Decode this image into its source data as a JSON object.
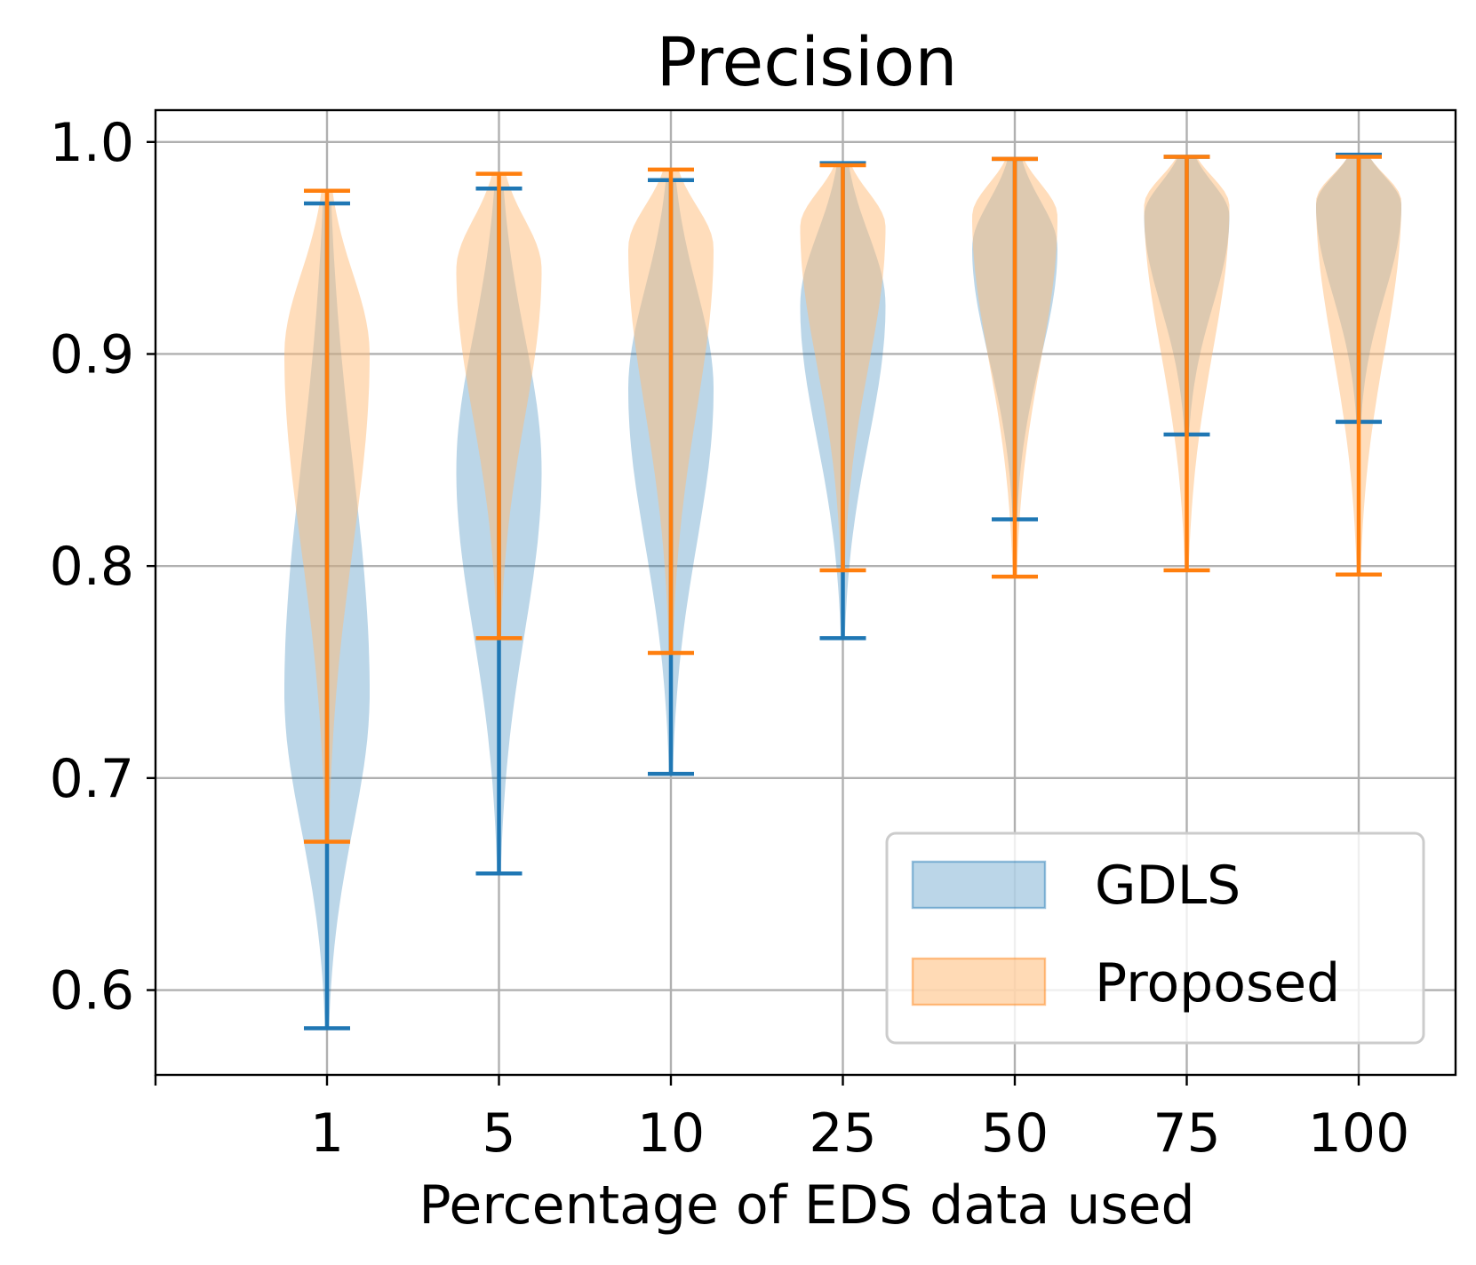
{
  "chart_data": {
    "type": "violin",
    "title": "Precision",
    "xlabel": "Percentage of EDS data used",
    "ylabel": "",
    "categories": [
      "1",
      "5",
      "10",
      "25",
      "50",
      "75",
      "100"
    ],
    "ylim": [
      0.56,
      1.015
    ],
    "yticks": [
      0.6,
      0.7,
      0.8,
      0.9,
      1.0
    ],
    "ytick_labels": [
      "0.6",
      "0.7",
      "0.8",
      "0.9",
      "1.0"
    ],
    "grid": true,
    "legend_position": "lower-right",
    "series": [
      {
        "name": "GDLS",
        "color": "#1f77b4",
        "fill": "#1f77b4",
        "min": [
          0.582,
          0.655,
          0.702,
          0.766,
          0.822,
          0.862,
          0.868
        ],
        "max": [
          0.971,
          0.978,
          0.982,
          0.99,
          0.992,
          0.993,
          0.994
        ],
        "mode": [
          0.74,
          0.845,
          0.883,
          0.923,
          0.95,
          0.965,
          0.97
        ]
      },
      {
        "name": "Proposed",
        "color": "#ff7f0e",
        "fill": "#ffbb78",
        "min": [
          0.67,
          0.766,
          0.759,
          0.798,
          0.795,
          0.798,
          0.796
        ],
        "max": [
          0.977,
          0.985,
          0.987,
          0.989,
          0.992,
          0.993,
          0.993
        ],
        "mode": [
          0.9,
          0.94,
          0.95,
          0.96,
          0.965,
          0.97,
          0.972
        ]
      }
    ]
  }
}
